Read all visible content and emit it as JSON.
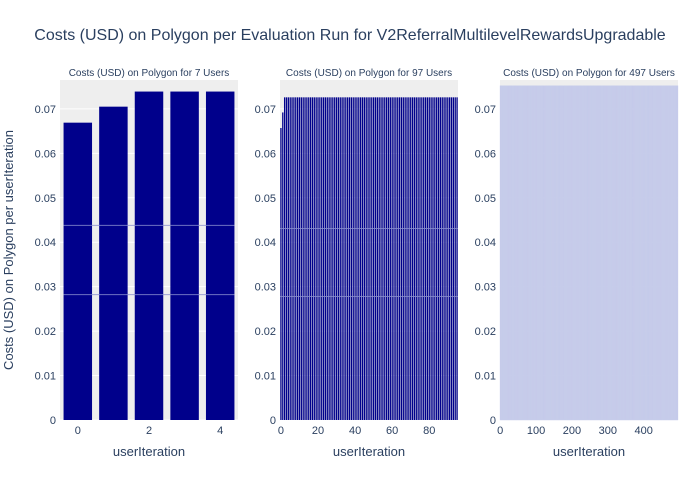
{
  "chart_data": {
    "title": "Costs (USD) on Polygon per Evaluation Run for V2ReferralMultilevelRewardsUpgradable",
    "ylabel": "Costs (USD) on Polygon per userIteration",
    "y_tick_labels": [
      "0",
      "0.01",
      "0.02",
      "0.03",
      "0.04",
      "0.05",
      "0.06",
      "0.07"
    ],
    "panels": [
      {
        "type": "bar",
        "title": "Costs (USD) on Polygon for 7 Users",
        "xlabel": "userIteration",
        "x_tick_labels": [
          "0",
          "2",
          "4"
        ],
        "x_tick_values": [
          0,
          2,
          4
        ],
        "xlim": [
          -0.5,
          4.5
        ],
        "ylim": [
          0,
          0.0765
        ],
        "color": "#00008b",
        "n": 5,
        "values": [
          0.0669,
          0.0705,
          0.0739,
          0.0739,
          0.0739
        ],
        "stack_boundaries": [
          0.0282,
          0.0438
        ]
      },
      {
        "type": "bar",
        "title": "Costs (USD) on Polygon for 97 Users",
        "xlabel": "userIteration",
        "x_tick_labels": [
          "0",
          "20",
          "40",
          "60",
          "80"
        ],
        "x_tick_values": [
          0,
          20,
          40,
          60,
          80
        ],
        "xlim": [
          -0.5,
          95.5
        ],
        "ylim": [
          0,
          0.0765
        ],
        "color": "#00008b",
        "n": 96,
        "first_values": [
          0.0657,
          0.0692
        ],
        "fill_value": 0.0726,
        "stack_boundaries": [
          0.0278,
          0.0431
        ]
      },
      {
        "type": "bar",
        "title": "Costs (USD) on Polygon for 497 Users",
        "xlabel": "userIteration",
        "x_tick_labels": [
          "0",
          "100",
          "200",
          "300",
          "400"
        ],
        "x_tick_values": [
          0,
          100,
          200,
          300,
          400
        ],
        "xlim": [
          -0.5,
          495.5
        ],
        "ylim": [
          0,
          0.0765
        ],
        "color": "#c5cbea",
        "n": 496,
        "fill_value": 0.0752
      }
    ]
  }
}
